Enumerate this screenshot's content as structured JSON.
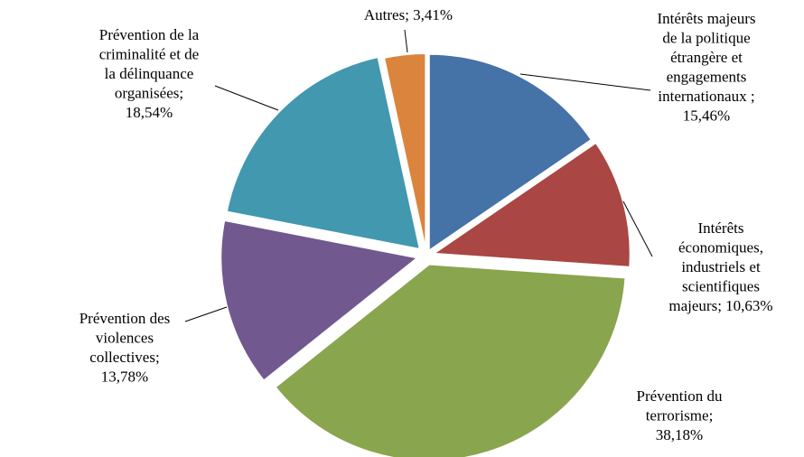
{
  "chart_data": {
    "type": "pie",
    "title": "",
    "labels": [
      "Intérêts majeurs de la politique étrangère et engagements internationaux",
      "Intérêts économiques, industriels et scientifiques majeurs",
      "Prévention du terrorisme",
      "Prévention des violences collectives",
      "Prévention de la criminalité et de la délinquance organisées",
      "Autres"
    ],
    "values": [
      15.46,
      10.63,
      38.18,
      13.78,
      18.54,
      3.41
    ],
    "value_labels": [
      "15,46%",
      "10,63%",
      "38,18%",
      "13,78%",
      "18,54%",
      "3,41%"
    ],
    "colors": [
      "#4572A7",
      "#AA4643",
      "#89A54E",
      "#71588F",
      "#4198AF",
      "#DB843D"
    ],
    "start_angle_deg": 0,
    "direction": "clockwise",
    "exploded": true,
    "legend": "none",
    "data_labels": [
      {
        "lines": [
          "Intérêts majeurs",
          "de la politique",
          "étrangère et",
          "engagements",
          "internationaux ;",
          "15,46%"
        ]
      },
      {
        "lines": [
          "Intérêts",
          "économiques,",
          "industriels et",
          "scientifiques",
          "majeurs; 10,63%"
        ]
      },
      {
        "lines": [
          "Prévention du",
          "terrorisme;",
          "38,18%"
        ]
      },
      {
        "lines": [
          "Prévention des",
          "violences",
          "collectives;",
          "13,78%"
        ]
      },
      {
        "lines": [
          "Prévention de la",
          "criminalité et de",
          "la délinquance",
          "organisées;",
          "18,54%"
        ]
      },
      {
        "lines": [
          "Autres; 3,41%"
        ]
      }
    ]
  }
}
